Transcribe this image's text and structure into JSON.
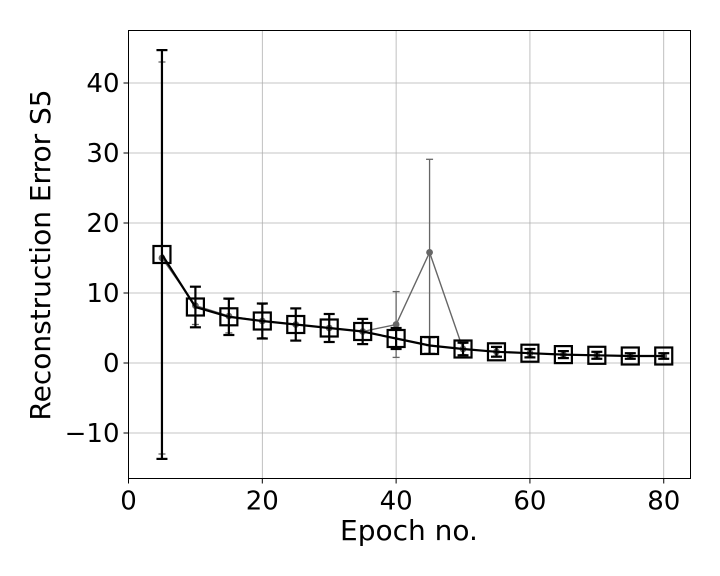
{
  "chart_data": {
    "type": "line",
    "xlabel": "Epoch no.",
    "ylabel": "Reconstruction Error S5",
    "xlim": [
      0,
      84
    ],
    "ylim": [
      -16.5,
      47.5
    ],
    "xticks": [
      0,
      20,
      40,
      60,
      80
    ],
    "yticks": [
      -10,
      0,
      10,
      20,
      30,
      40
    ],
    "xtick_labels": [
      "0",
      "20",
      "40",
      "60",
      "80"
    ],
    "ytick_labels": [
      "−10",
      "0",
      "10",
      "20",
      "30",
      "40"
    ],
    "grid": true,
    "series": [
      {
        "marker": "circle",
        "color": "#666666",
        "x": [
          5,
          10,
          15,
          20,
          25,
          30,
          35,
          40,
          45,
          50,
          55,
          60,
          65,
          70,
          75,
          80
        ],
        "y": [
          15.0,
          8.2,
          6.7,
          6.0,
          5.5,
          5.0,
          4.5,
          5.5,
          15.8,
          2.0,
          1.6,
          1.4,
          1.2,
          1.1,
          1.0,
          1.0
        ],
        "err": [
          28.0,
          2.7,
          2.4,
          2.4,
          2.3,
          2.0,
          1.8,
          4.7,
          13.3,
          0.8,
          0.6,
          0.5,
          0.5,
          0.4,
          0.4,
          0.4
        ]
      },
      {
        "marker": "square",
        "color": "#000000",
        "x": [
          5,
          10,
          15,
          20,
          25,
          30,
          35,
          40,
          45,
          50,
          55,
          60,
          65,
          70,
          75,
          80
        ],
        "y": [
          15.5,
          8.0,
          6.6,
          6.0,
          5.5,
          5.0,
          4.5,
          3.5,
          2.5,
          2.0,
          1.6,
          1.4,
          1.2,
          1.1,
          1.0,
          1.0
        ],
        "err": [
          29.2,
          2.9,
          2.6,
          2.5,
          2.3,
          2.0,
          1.8,
          1.5,
          1.2,
          0.9,
          0.7,
          0.6,
          0.5,
          0.5,
          0.4,
          0.4
        ]
      }
    ]
  }
}
